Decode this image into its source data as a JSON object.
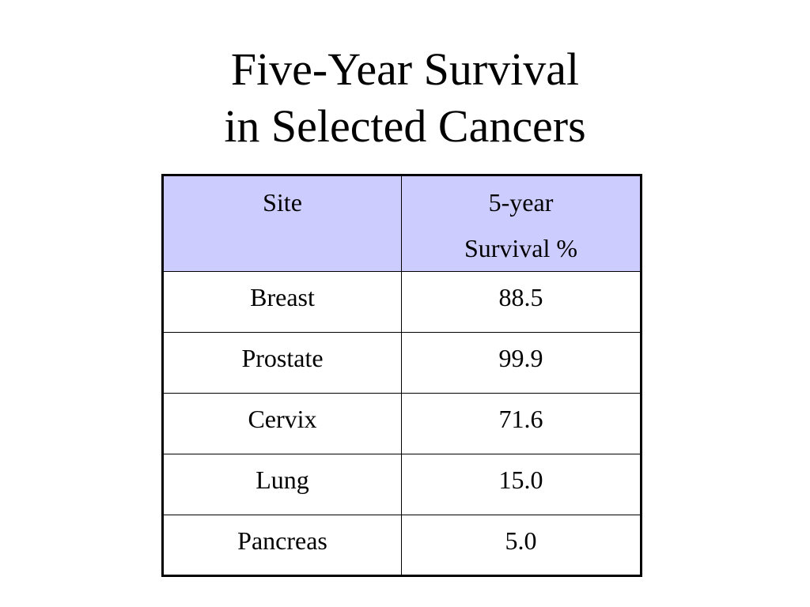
{
  "title": {
    "line1": "Five-Year Survival",
    "line2": "in Selected Cancers"
  },
  "table": {
    "header": {
      "site": "Site",
      "survival_line1": "5-year",
      "survival_line2": "Survival %"
    },
    "rows": [
      {
        "site": "Breast",
        "survival": "88.5"
      },
      {
        "site": "Prostate",
        "survival": "99.9"
      },
      {
        "site": "Cervix",
        "survival": "71.6"
      },
      {
        "site": "Lung",
        "survival": "15.0"
      },
      {
        "site": "Pancreas",
        "survival": "5.0"
      }
    ]
  },
  "colors": {
    "header_background": "#ccccff",
    "border": "#000000",
    "text": "#000000"
  }
}
